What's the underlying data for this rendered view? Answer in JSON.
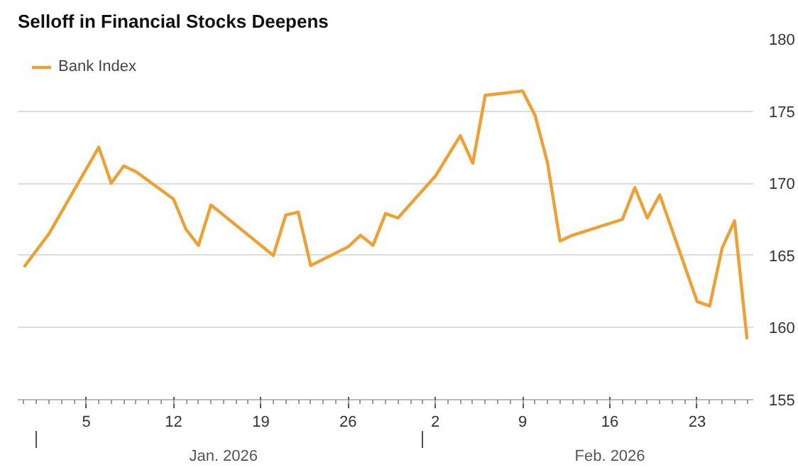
{
  "chart_data": {
    "type": "line",
    "title": "Selloff in Financial Stocks Deepens",
    "x": [
      "2025-12-31",
      "2026-01-02",
      "2026-01-05",
      "2026-01-06",
      "2026-01-07",
      "2026-01-08",
      "2026-01-09",
      "2026-01-12",
      "2026-01-13",
      "2026-01-14",
      "2026-01-15",
      "2026-01-16",
      "2026-01-20",
      "2026-01-21",
      "2026-01-22",
      "2026-01-23",
      "2026-01-26",
      "2026-01-27",
      "2026-01-28",
      "2026-01-29",
      "2026-01-30",
      "2026-02-02",
      "2026-02-03",
      "2026-02-04",
      "2026-02-05",
      "2026-02-06",
      "2026-02-09",
      "2026-02-10",
      "2026-02-11",
      "2026-02-12",
      "2026-02-13",
      "2026-02-17",
      "2026-02-18",
      "2026-02-19",
      "2026-02-20",
      "2026-02-23",
      "2026-02-24",
      "2026-02-25",
      "2026-02-26",
      "2026-02-27"
    ],
    "series": [
      {
        "name": "Bank Index",
        "color": "#f0a030",
        "values": [
          164.2,
          166.5,
          171.0,
          172.5,
          170.0,
          171.2,
          170.8,
          168.9,
          166.8,
          165.7,
          168.5,
          167.8,
          165.0,
          167.8,
          168.0,
          164.3,
          165.6,
          166.4,
          165.7,
          167.9,
          167.6,
          170.5,
          171.9,
          173.3,
          171.4,
          176.1,
          176.4,
          174.7,
          171.4,
          166.0,
          166.4,
          167.5,
          169.7,
          167.6,
          169.2,
          161.8,
          161.5,
          165.5,
          167.4,
          159.2
        ]
      }
    ],
    "xlim": [
      "2025-12-30T12:00",
      "2026-02-27T12:00"
    ],
    "xticks": [
      {
        "value": "2026-01-05",
        "label": "5"
      },
      {
        "value": "2026-01-12",
        "label": "12"
      },
      {
        "value": "2026-01-19",
        "label": "19"
      },
      {
        "value": "2026-01-26",
        "label": "26"
      },
      {
        "value": "2026-02-02",
        "label": "2"
      },
      {
        "value": "2026-02-09",
        "label": "9"
      },
      {
        "value": "2026-02-16",
        "label": "16"
      },
      {
        "value": "2026-02-23",
        "label": "23"
      }
    ],
    "ylim": [
      155,
      180
    ],
    "yticks": [
      155,
      160,
      165,
      170,
      175,
      180
    ],
    "grid": "y",
    "legend": "top left",
    "marker": "none",
    "line_style": "solid",
    "annotations": [
      "Jan. 2026",
      "Feb. 2026"
    ]
  }
}
